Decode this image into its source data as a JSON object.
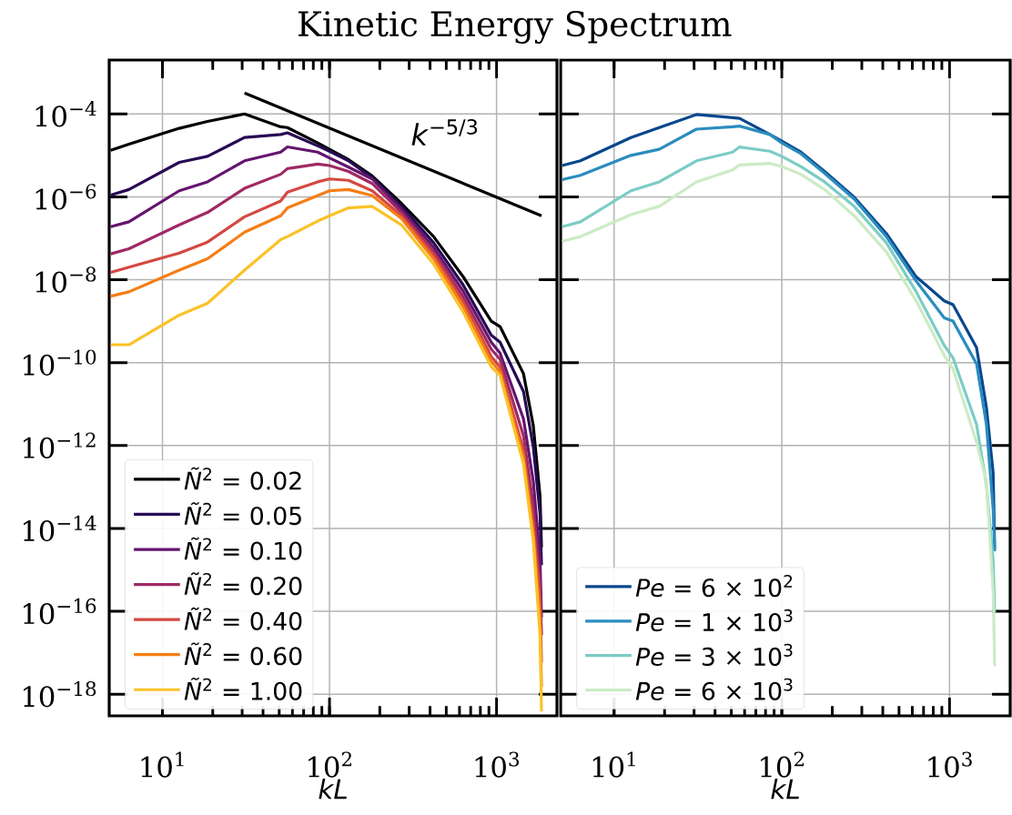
{
  "chart_data": [
    {
      "type": "line",
      "title": "Kinetic Energy Spectrum",
      "xlabel": "*kL*",
      "x": [
        4.9,
        6.3,
        12.6,
        18.6,
        31,
        51,
        56,
        85,
        100,
        130,
        180,
        270,
        420,
        630,
        930,
        1050,
        1450,
        1660,
        1820,
        1860
      ],
      "series": [
        {
          "name": "*Ñ*$^{2}$ = 0.02",
          "color": "#000000",
          "values": [
            1.33e-05,
            1.86e-05,
            4.5e-05,
            6.6e-05,
            0.0001,
            4.9e-05,
            4.7e-05,
            2e-05,
            1.4e-05,
            7.9e-06,
            3.2e-06,
            6.9e-07,
            1.1e-07,
            1.2e-08,
            1e-09,
            7.4e-10,
            5.4e-11,
            3e-12,
            6.2e-14,
            3.5e-15
          ]
        },
        {
          "name": "*Ñ*$^{2}$ = 0.05",
          "color": "#280b54",
          "values": [
            1.1e-06,
            1.5e-06,
            6.8e-06,
            9.5e-06,
            2.7e-05,
            3.2e-05,
            3.5e-05,
            1.7e-05,
            1.26e-05,
            7.4e-06,
            2.9e-06,
            5.9e-07,
            7.8e-08,
            7.6e-09,
            4.6e-10,
            3.1e-10,
            2e-11,
            9.3e-13,
            2.3e-14,
            1.3e-15
          ]
        },
        {
          "name": "*Ñ*$^{2}$ = 0.10",
          "color": "#65156e",
          "values": [
            1.9e-07,
            2.5e-07,
            1.4e-06,
            2.3e-06,
            7.4e-06,
            1.2e-05,
            1.6e-05,
            1.2e-05,
            8.7e-06,
            5.2e-06,
            2.7e-06,
            5e-07,
            6e-08,
            5.4e-09,
            3.1e-10,
            1.7e-10,
            4.4e-12,
            1.35e-13,
            1.9e-15,
            7.1e-17
          ]
        },
        {
          "name": "*Ñ*$^{2}$ = 0.20",
          "color": "#9f2a63",
          "values": [
            4.2e-08,
            5.6e-08,
            2.1e-07,
            4.2e-07,
            1.6e-06,
            3.5e-06,
            4.8e-06,
            6.2e-06,
            5.7e-06,
            4.1e-06,
            2.1e-06,
            4.2e-07,
            4.7e-08,
            3.9e-09,
            2.1e-10,
            1.2e-10,
            1.7e-12,
            3.5e-14,
            4.9e-16,
            2.7e-17
          ]
        },
        {
          "name": "*Ñ*$^{2}$ = 0.40",
          "color": "#d44842",
          "values": [
            1.5e-08,
            2e-08,
            4.4e-08,
            8.1e-08,
            3.3e-07,
            7.9e-07,
            1.3e-06,
            2.3e-06,
            2.7e-06,
            2.5e-06,
            1.4e-06,
            3.5e-07,
            4e-08,
            3e-09,
            1.4e-10,
            7.9e-11,
            7.7e-13,
            1.3e-14,
            1.9e-16,
            5.8e-18
          ]
        },
        {
          "name": "*Ñ*$^{2}$ = 0.60",
          "color": "#f57d15",
          "values": [
            4e-09,
            5.1e-09,
            1.7e-08,
            3.2e-08,
            1.4e-07,
            3.5e-07,
            5.4e-07,
            1.07e-06,
            1.4e-06,
            1.5e-06,
            1.07e-06,
            3e-07,
            3.2e-08,
            2.3e-09,
            1.07e-10,
            6e-11,
            5.2e-13,
            7.4e-15,
            7.1e-17,
            1.5e-18
          ]
        },
        {
          "name": "*Ñ*$^{2}$ = 1.00",
          "color": "#fac228",
          "values": [
            2.7e-10,
            2.7e-10,
            1.4e-09,
            2.7e-09,
            1.7e-08,
            9.3e-08,
            1.1e-07,
            2.6e-07,
            3.5e-07,
            5.4e-07,
            5.9e-07,
            2.1e-07,
            2.4e-08,
            1.7e-09,
            7.9e-11,
            4.9e-11,
            3.6e-13,
            5e-15,
            2.7e-17,
            3.8e-19
          ]
        },
        {
          "type": "line",
          "color": "#000000",
          "x": [
            31,
            1860
          ],
          "values": [
            0.00032,
            3.5e-07
          ]
        }
      ],
      "annotations": [
        "*k*$^{−5/3}$"
      ],
      "log": "xy",
      "grid": true,
      "legend": "bottom left",
      "xlim": [
        4.8,
        2300
      ],
      "ylim": [
        3e-19,
        0.002
      ],
      "xticks": [
        {
          "value": 10,
          "label": "10$^{1}$"
        },
        {
          "value": 100,
          "label": "10$^{2}$"
        },
        {
          "value": 1000,
          "label": "10$^{3}$"
        }
      ],
      "yticks": [
        {
          "value": 1e-18,
          "label": "10$^{−18}$"
        },
        {
          "value": 1e-16,
          "label": "10$^{−16}$"
        },
        {
          "value": 1e-14,
          "label": "10$^{−14}$"
        },
        {
          "value": 1e-12,
          "label": "10$^{−12}$"
        },
        {
          "value": 1e-10,
          "label": "10$^{−10}$"
        },
        {
          "value": 1e-08,
          "label": "10$^{−8}$"
        },
        {
          "value": 1e-06,
          "label": "10$^{−6}$"
        },
        {
          "value": 0.0001,
          "label": "10$^{−4}$"
        }
      ]
    },
    {
      "type": "line",
      "xlabel": "*kL*",
      "x": [
        4.9,
        6.3,
        12.6,
        18.6,
        31,
        51,
        56,
        85,
        100,
        130,
        180,
        270,
        420,
        630,
        930,
        1050,
        1450,
        1660,
        1820,
        1860
      ],
      "series": [
        {
          "name": "*Pe* = 6 × 10$^{2}$",
          "color": "#08478d",
          "values": [
            5.7e-06,
            7.4e-06,
            2.7e-05,
            4.7e-05,
            9.7e-05,
            8.1e-05,
            7.8e-05,
            3.2e-05,
            2.2e-05,
            1.2e-05,
            4.1e-06,
            9.8e-07,
            1.3e-07,
            1.2e-08,
            3.1e-09,
            2.5e-09,
            2.3e-10,
            8.3e-12,
            2.2e-13,
            3.2e-15
          ]
        },
        {
          "name": "*Pe* = 1 × 10$^{3}$",
          "color": "#2b8cbe",
          "values": [
            2.6e-06,
            3.3e-06,
            1e-05,
            1.4e-05,
            4.3e-05,
            4.9e-05,
            5.1e-05,
            3.2e-05,
            2e-05,
            1.1e-05,
            3.7e-06,
            8.9e-07,
            1.1e-07,
            9.5e-09,
            1.2e-09,
            1e-09,
            9.3e-11,
            3.2e-12,
            2.9e-14,
            2.8e-15
          ]
        },
        {
          "name": "*Pe* = 3 × 10$^{3}$",
          "color": "#7bccc4",
          "values": [
            1.9e-07,
            2.5e-07,
            1.4e-06,
            2.3e-06,
            7.4e-06,
            1.2e-05,
            1.6e-05,
            1.26e-05,
            9.5e-06,
            5.4e-06,
            2.3e-06,
            5.9e-07,
            7.8e-08,
            5.3e-09,
            2.6e-10,
            1.3e-10,
            3.2e-12,
            1.1e-13,
            1.7e-15,
            9.5e-17
          ]
        },
        {
          "name": "*Pe* = 6 × 10$^{3}$",
          "color": "#ccebc5",
          "values": [
            8.5e-08,
            1.1e-07,
            3.7e-07,
            5.9e-07,
            2.3e-06,
            4.5e-06,
            5.9e-06,
            6.4e-06,
            5.4e-06,
            3.5e-06,
            1.5e-06,
            3.5e-07,
            4.7e-08,
            3.2e-09,
            1.5e-10,
            7e-11,
            1.2e-12,
            1.3e-13,
            3.1e-16,
            4.7e-18
          ]
        }
      ],
      "log": "xy",
      "grid": true,
      "legend": "bottom left",
      "tick_labels": "x",
      "xlim": [
        4.8,
        2300
      ],
      "ylim": [
        3e-19,
        0.002
      ],
      "xticks": [
        {
          "value": 10,
          "label": "10$^{1}$"
        },
        {
          "value": 100,
          "label": "10$^{2}$"
        },
        {
          "value": 1000,
          "label": "10$^{3}$"
        }
      ],
      "yticks": [
        1e-18,
        1e-16,
        1e-14,
        1e-12,
        1e-10,
        1e-08,
        1e-06,
        0.0001
      ]
    }
  ]
}
